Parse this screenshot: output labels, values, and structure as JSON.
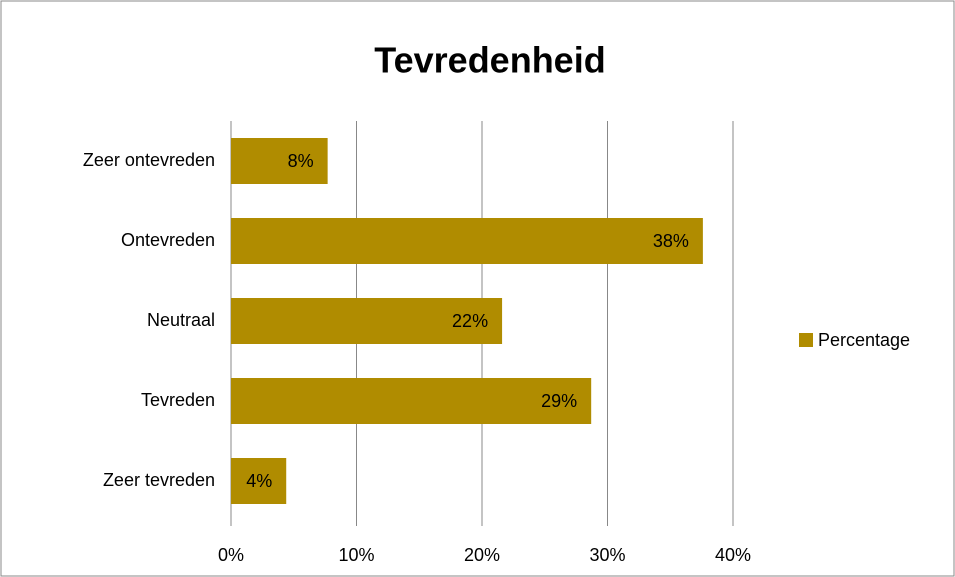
{
  "chart_data": {
    "type": "bar",
    "orientation": "horizontal",
    "title": "Tevredenheid",
    "categories": [
      "Zeer ontevreden",
      "Ontevreden",
      "Neutraal",
      "Tevreden",
      "Zeer tevreden"
    ],
    "series": [
      {
        "name": "Percentage",
        "color": "#b08c00",
        "values": [
          7.7,
          37.6,
          21.6,
          28.7,
          4.4
        ],
        "value_labels": [
          "8%",
          "38%",
          "22%",
          "29%",
          "4%"
        ]
      }
    ],
    "xlim": [
      0,
      40
    ],
    "xticks": [
      {
        "value": 0,
        "label": "0%"
      },
      {
        "value": 10,
        "label": "10%"
      },
      {
        "value": 20,
        "label": "20%"
      },
      {
        "value": 30,
        "label": "30%"
      },
      {
        "value": 40,
        "label": "40%"
      }
    ],
    "grid": true,
    "legend": "right"
  }
}
